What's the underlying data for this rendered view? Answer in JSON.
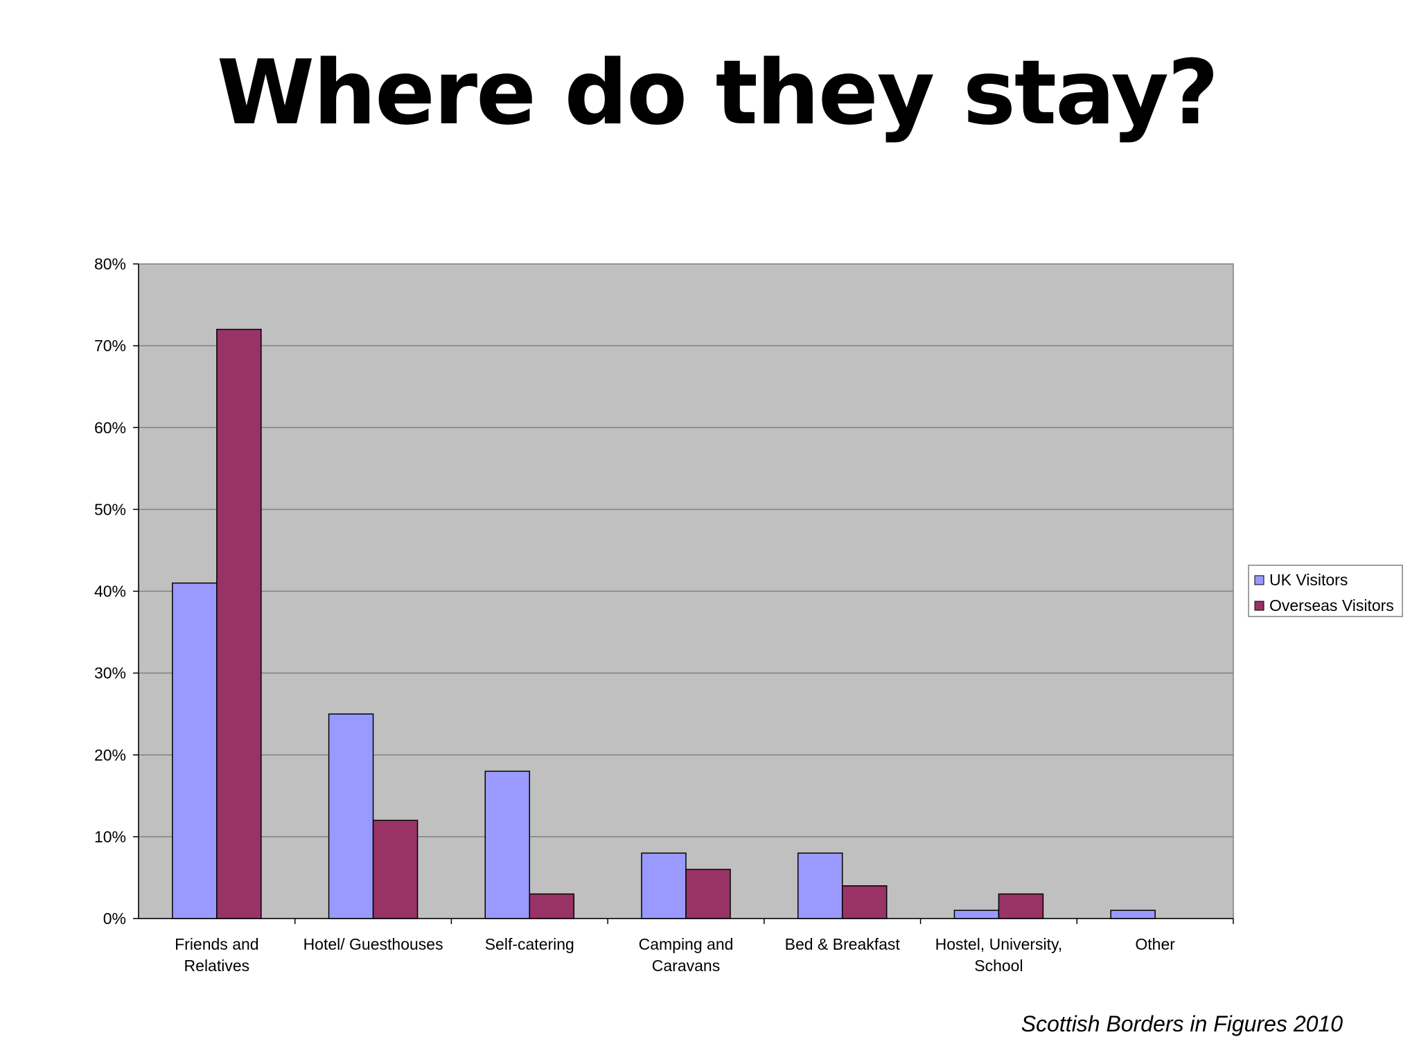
{
  "slide": {
    "title": "Where do they stay?",
    "source": "Scottish Borders in Figures 2010"
  },
  "chart_data": {
    "type": "bar",
    "title": "",
    "xlabel": "",
    "ylabel": "",
    "categories": [
      [
        "Friends and",
        "Relatives"
      ],
      [
        "Hotel/ Guesthouses"
      ],
      [
        "Self-catering"
      ],
      [
        "Camping and",
        "Caravans"
      ],
      [
        "Bed & Breakfast"
      ],
      [
        "Hostel, University,",
        "School"
      ],
      [
        "Other"
      ]
    ],
    "series": [
      {
        "name": "UK Visitors",
        "color": "#9999ff",
        "values": [
          41,
          25,
          18,
          8,
          8,
          1,
          1
        ]
      },
      {
        "name": "Overseas Visitors",
        "color": "#993366",
        "values": [
          72,
          12,
          3,
          6,
          4,
          3,
          0
        ]
      }
    ],
    "ylim": [
      0,
      80
    ],
    "yticks": [
      0,
      10,
      20,
      30,
      40,
      50,
      60,
      70,
      80
    ],
    "ytick_suffix": "%",
    "grid": true,
    "plot_background": "#c0c0c0",
    "legend_position": "right"
  }
}
